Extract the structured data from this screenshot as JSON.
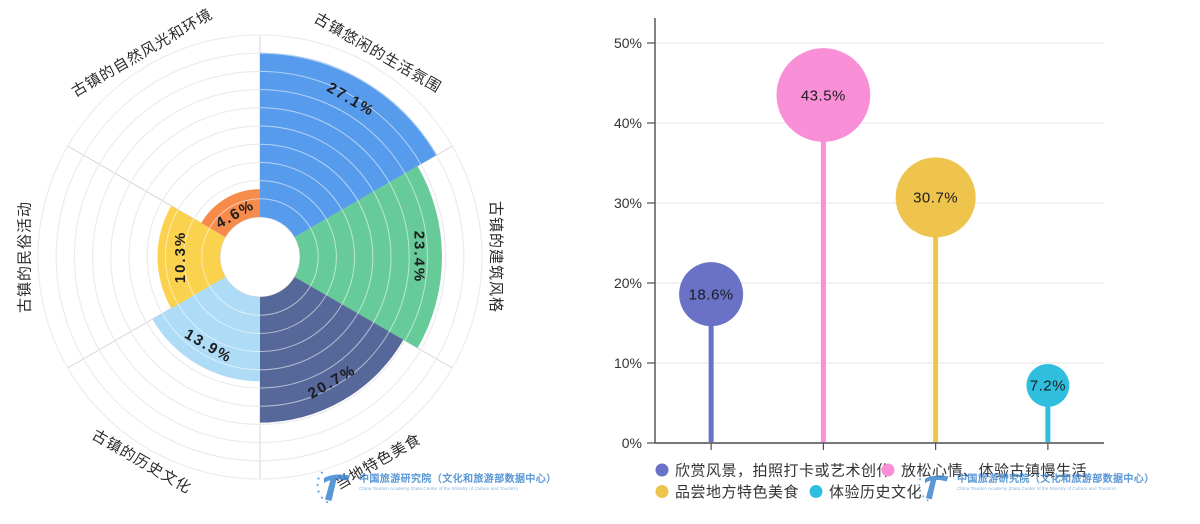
{
  "watermark": {
    "line1": "中国旅游研究院（文化和旅游部数据中心）",
    "line2": "China Tourism Academy (Data Center of the Ministry of Culture and Tourism)",
    "color": "#3e85cf"
  },
  "chart_data": [
    {
      "type": "rose",
      "title": "",
      "categories": [
        "古镇悠闲的生活氛围",
        "古镇的建筑风格",
        "当地特色美食",
        "古镇的历史文化",
        "古镇的民俗活动",
        "古镇的自然风光和环境"
      ],
      "values": [
        27.1,
        23.4,
        20.7,
        13.9,
        10.3,
        4.6
      ],
      "labels": [
        "27.1%",
        "23.4%",
        "20.7%",
        "13.9%",
        "10.3%",
        "4.6%"
      ],
      "colors": [
        "#579bec",
        "#67cb99",
        "#56689a",
        "#aedcf7",
        "#fbd24d",
        "#f68b4b"
      ],
      "axis_max": 30,
      "ring_count": 10,
      "start_angle_deg": 0,
      "direction": "clockwise",
      "grid": "on",
      "legend_position": "none"
    },
    {
      "type": "lollipop",
      "title": "",
      "categories": [
        "欣赏风景，拍照打卡或艺术创作",
        "放松心情、体验古镇慢生活",
        "品尝地方特色美食",
        "体验历史文化"
      ],
      "values": [
        18.6,
        43.5,
        30.7,
        7.2
      ],
      "labels": [
        "18.6%",
        "43.5%",
        "30.7%",
        "7.2%"
      ],
      "colors": [
        "#6972c6",
        "#f98fd6",
        "#efc44d",
        "#30bedf"
      ],
      "y_ticks": [
        "0%",
        "10%",
        "20%",
        "30%",
        "40%",
        "50%"
      ],
      "ylim": [
        0,
        50
      ],
      "grid": "horizontal",
      "legend_position": "bottom"
    }
  ]
}
